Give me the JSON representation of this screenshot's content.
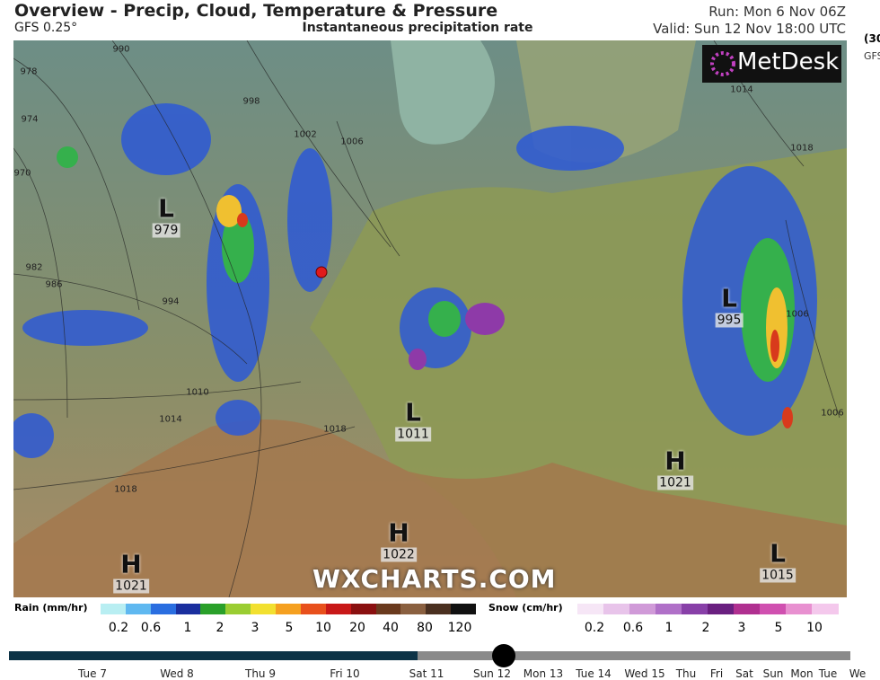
{
  "header": {
    "title": "Overview - Precip, Cloud, Temperature & Pressure",
    "model": "GFS 0.25°",
    "product": "Instantaneous precipitation rate",
    "run": "Run: Mon 6 Nov 06Z",
    "valid": "Valid: Sun 12 Nov 18:00 UTC",
    "side_1": "(30",
    "side_2": "GFS"
  },
  "map": {
    "logo": "MetDesk",
    "watermark": "WXCHARTS.COM",
    "pressure_centers": [
      {
        "kind": "L",
        "value": "979"
      },
      {
        "kind": "L",
        "value": "995"
      },
      {
        "kind": "L",
        "value": "1011"
      },
      {
        "kind": "H",
        "value": "1021"
      },
      {
        "kind": "H",
        "value": "1022"
      },
      {
        "kind": "H",
        "value": "1021"
      },
      {
        "kind": "L",
        "value": "1015"
      }
    ],
    "isobar_labels": [
      "990",
      "978",
      "974",
      "970",
      "982",
      "986",
      "994",
      "998",
      "1002",
      "1006",
      "1010",
      "1014",
      "1018",
      "1014",
      "1018",
      "1006",
      "1006",
      "1018"
    ]
  },
  "legend": {
    "rain_label": "Rain (mm/hr)",
    "rain_ticks": [
      "0.2",
      "0.6",
      "1",
      "2",
      "3",
      "5",
      "10",
      "20",
      "40",
      "80",
      "120"
    ],
    "snow_label": "Snow (cm/hr)",
    "snow_ticks": [
      "0.2",
      "0.6",
      "1",
      "2",
      "3",
      "5",
      "10"
    ]
  },
  "timeline": {
    "labels": [
      "Tue 7",
      "Wed 8",
      "Thu 9",
      "Fri 10",
      "Sat 11",
      "Sun 12",
      "Mon 13",
      "Tue 14",
      "Wed 15",
      "Thu",
      "Fri",
      "Sat",
      "Sun",
      "Mon",
      "Tue",
      "We"
    ]
  }
}
